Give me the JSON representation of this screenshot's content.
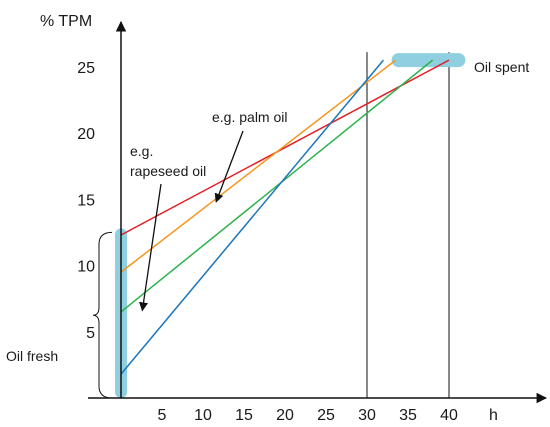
{
  "chart_data": {
    "type": "line",
    "ylabel": "% TPM",
    "x_unit": "h",
    "xlim": [
      0,
      50
    ],
    "ylim": [
      0,
      28
    ],
    "x_ticks": [
      5,
      10,
      15,
      20,
      25,
      30,
      35,
      40
    ],
    "y_ticks": [
      5,
      10,
      15,
      20,
      25
    ],
    "reference_lines_x": [
      30,
      40
    ],
    "series": [
      {
        "color": "#e31e24",
        "points": [
          [
            0,
            12.3
          ],
          [
            40,
            25.5
          ]
        ]
      },
      {
        "color": "#f7941d",
        "points": [
          [
            0,
            9.5
          ],
          [
            33.5,
            25.5
          ]
        ]
      },
      {
        "color": "#2bb24c",
        "points": [
          [
            0,
            6.5
          ],
          [
            38,
            25.5
          ]
        ]
      },
      {
        "color": "#1a75bc",
        "points": [
          [
            0,
            1.8
          ],
          [
            32,
            25.5
          ]
        ]
      }
    ],
    "fresh_band": {
      "label": "Oil fresh",
      "x": 0,
      "y_range": [
        0,
        12.8
      ],
      "brace_y_range": [
        0,
        12.5
      ],
      "color": "#8fcfe0"
    },
    "spent_band": {
      "label": "Oil spent",
      "y": 25.5,
      "x_range": [
        33,
        42
      ],
      "color": "#8fcfe0"
    },
    "annotations": [
      {
        "text": "e.g. palm oil",
        "points_to": [
          11.6,
          14.8
        ]
      },
      {
        "lines": [
          "e.g.",
          "rapeseed oil"
        ],
        "points_to": [
          2.6,
          6.6
        ]
      }
    ]
  },
  "colors": {
    "axis": "#111111",
    "band": "#8fcfe0"
  }
}
